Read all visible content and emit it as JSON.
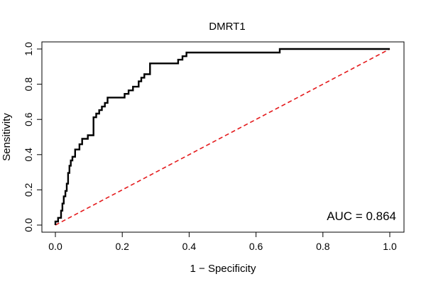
{
  "chart_data": {
    "type": "line",
    "title": "DMRT1",
    "xlabel": "1 − Specificity",
    "ylabel": "Sensitivity",
    "xlim": [
      0,
      1
    ],
    "ylim": [
      0,
      1
    ],
    "x_ticks": [
      0.0,
      0.2,
      0.4,
      0.6,
      0.8,
      1.0
    ],
    "x_tick_labels": [
      "0.0",
      "0.2",
      "0.4",
      "0.6",
      "0.8",
      "1.0"
    ],
    "y_ticks": [
      0.0,
      0.2,
      0.4,
      0.6,
      0.8,
      1.0
    ],
    "y_tick_labels": [
      "0.0",
      "0.2",
      "0.4",
      "0.6",
      "0.8",
      "1.0"
    ],
    "grid": false,
    "annotation": "AUC = 0.864",
    "colors": {
      "roc": "#000000",
      "diagonal": "#e41a1c"
    },
    "series": [
      {
        "style": "step",
        "x": [
          0.0,
          0.0,
          0.008,
          0.008,
          0.017,
          0.017,
          0.021,
          0.021,
          0.025,
          0.025,
          0.03,
          0.03,
          0.034,
          0.034,
          0.038,
          0.038,
          0.042,
          0.042,
          0.046,
          0.046,
          0.051,
          0.051,
          0.059,
          0.059,
          0.072,
          0.072,
          0.08,
          0.08,
          0.097,
          0.097,
          0.114,
          0.114,
          0.122,
          0.122,
          0.131,
          0.131,
          0.139,
          0.139,
          0.148,
          0.148,
          0.156,
          0.156,
          0.207,
          0.207,
          0.219,
          0.219,
          0.232,
          0.232,
          0.249,
          0.249,
          0.257,
          0.257,
          0.266,
          0.266,
          0.283,
          0.283,
          0.367,
          0.367,
          0.38,
          0.38,
          0.392,
          0.392,
          0.671,
          0.671,
          1.0
        ],
        "y": [
          0.0,
          0.02,
          0.02,
          0.041,
          0.041,
          0.082,
          0.082,
          0.122,
          0.122,
          0.163,
          0.163,
          0.194,
          0.194,
          0.235,
          0.235,
          0.296,
          0.296,
          0.337,
          0.337,
          0.367,
          0.367,
          0.388,
          0.388,
          0.429,
          0.429,
          0.459,
          0.459,
          0.49,
          0.49,
          0.51,
          0.51,
          0.612,
          0.612,
          0.633,
          0.633,
          0.653,
          0.653,
          0.673,
          0.673,
          0.694,
          0.694,
          0.724,
          0.724,
          0.745,
          0.745,
          0.765,
          0.765,
          0.786,
          0.786,
          0.816,
          0.816,
          0.837,
          0.837,
          0.857,
          0.857,
          0.918,
          0.918,
          0.939,
          0.939,
          0.959,
          0.959,
          0.98,
          0.98,
          1.0,
          1.0
        ]
      },
      {
        "style": "dashed",
        "x": [
          0,
          1
        ],
        "y": [
          0,
          1
        ]
      }
    ]
  }
}
